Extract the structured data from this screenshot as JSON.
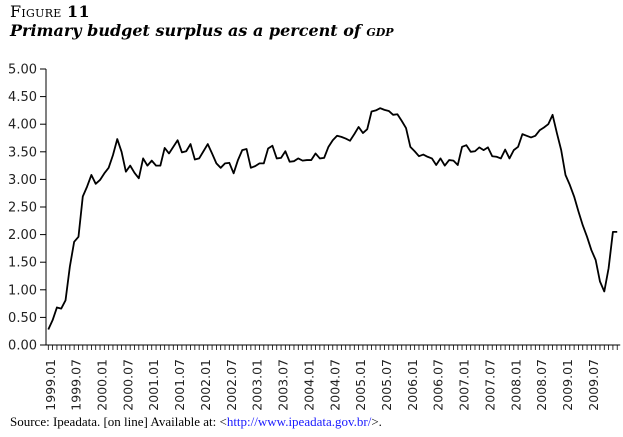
{
  "figure": {
    "label_word": "Figure",
    "label_number": "11",
    "title_main": "Primary budget surplus as a percent of",
    "title_sc": "gdp"
  },
  "source": {
    "prefix": "Source: Ipeadata. [on line] Available at: <",
    "link": "http://www.ipeadata.gov.br/",
    "suffix": ">."
  },
  "chart_data": {
    "type": "line",
    "title": "Primary budget surplus as a percent of GDP",
    "xlabel": "",
    "ylabel": "",
    "ylim": [
      0,
      5
    ],
    "yticks": [
      "0.00",
      "0.50",
      "1.00",
      "1.50",
      "2.00",
      "2.50",
      "3.00",
      "3.50",
      "4.00",
      "4.50",
      "5.00"
    ],
    "x_start": "1999.01",
    "x_frequency": "monthly",
    "xtick_labels": [
      "1999.01",
      "1999.07",
      "2000.01",
      "2000.07",
      "2001.01",
      "2001.07",
      "2002.01",
      "2002.07",
      "2003.01",
      "2003.07",
      "2004.01",
      "2004.07",
      "2005.01",
      "2005.07",
      "2006.01",
      "2006.07",
      "2007.01",
      "2007.07",
      "2008.01",
      "2008.07",
      "2009.01",
      "2009.07"
    ],
    "grid": false,
    "legend": "none",
    "series": [
      {
        "name": "Primary budget surplus (% of GDP)",
        "color": "#000000",
        "values": [
          0.28,
          0.45,
          0.68,
          0.66,
          0.81,
          1.42,
          1.87,
          1.96,
          2.69,
          2.87,
          3.08,
          2.92,
          2.99,
          3.11,
          3.21,
          3.44,
          3.73,
          3.5,
          3.14,
          3.25,
          3.12,
          3.02,
          3.38,
          3.25,
          3.34,
          3.25,
          3.25,
          3.57,
          3.47,
          3.59,
          3.71,
          3.49,
          3.51,
          3.64,
          3.36,
          3.38,
          3.51,
          3.64,
          3.47,
          3.29,
          3.21,
          3.29,
          3.3,
          3.11,
          3.35,
          3.53,
          3.55,
          3.21,
          3.24,
          3.29,
          3.29,
          3.56,
          3.61,
          3.38,
          3.39,
          3.51,
          3.32,
          3.33,
          3.38,
          3.34,
          3.35,
          3.35,
          3.47,
          3.38,
          3.39,
          3.59,
          3.71,
          3.79,
          3.77,
          3.74,
          3.7,
          3.82,
          3.95,
          3.84,
          3.91,
          4.23,
          4.25,
          4.29,
          4.26,
          4.24,
          4.17,
          4.18,
          4.06,
          3.93,
          3.59,
          3.51,
          3.42,
          3.45,
          3.41,
          3.38,
          3.26,
          3.38,
          3.25,
          3.35,
          3.34,
          3.26,
          3.59,
          3.62,
          3.5,
          3.51,
          3.58,
          3.53,
          3.58,
          3.42,
          3.41,
          3.38,
          3.54,
          3.38,
          3.53,
          3.59,
          3.82,
          3.79,
          3.76,
          3.79,
          3.89,
          3.94,
          4.0,
          4.17,
          3.84,
          3.53,
          3.08,
          2.9,
          2.69,
          2.42,
          2.17,
          1.96,
          1.72,
          1.54,
          1.15,
          0.97,
          1.39,
          2.05,
          2.05
        ]
      }
    ]
  }
}
